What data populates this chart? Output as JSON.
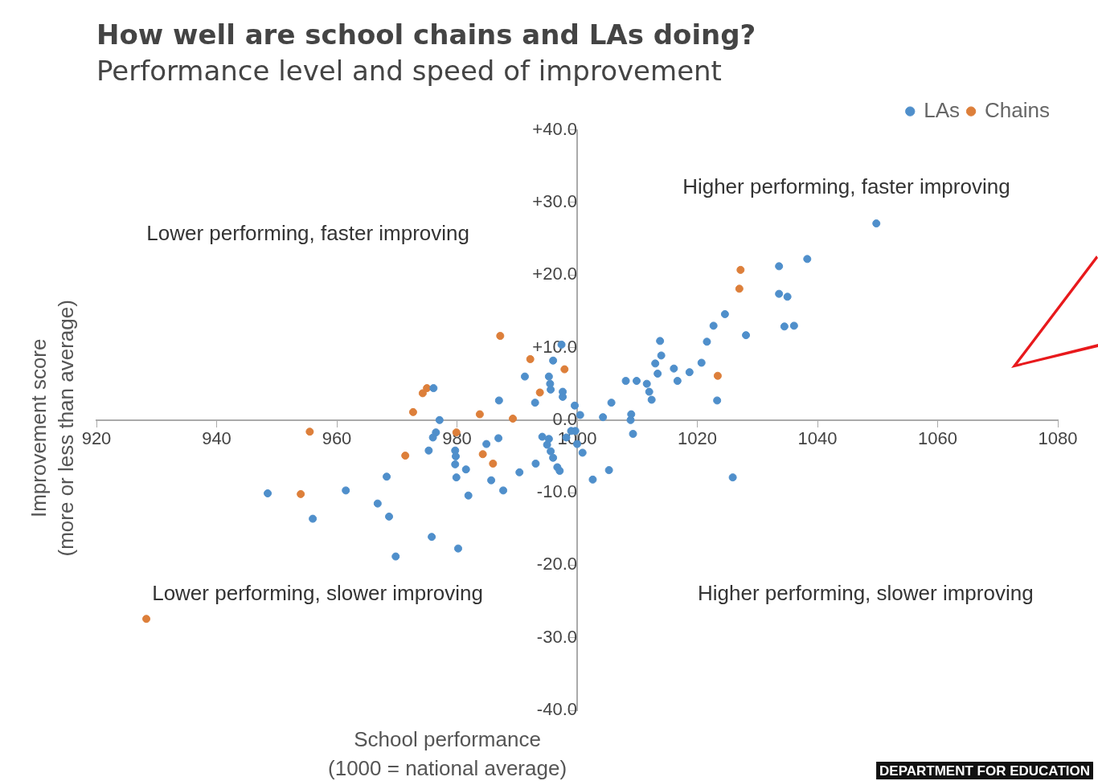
{
  "chart_data": {
    "type": "scatter",
    "title": "How well are school chains and LAs doing?",
    "subtitle": "Performance level and speed of improvement",
    "xlabel": "School performance\n(1000 = national average)",
    "ylabel": "Improvement score\n(more or less than average)",
    "xlim": [
      920,
      1080
    ],
    "xticks": [
      920,
      940,
      960,
      980,
      1000,
      1020,
      1040,
      1060,
      1080
    ],
    "ylim": [
      -40,
      40
    ],
    "yticks": [
      {
        "value": -40,
        "label": "-40.0"
      },
      {
        "value": -30,
        "label": "-30.0"
      },
      {
        "value": -20,
        "label": "-20.0"
      },
      {
        "value": -10,
        "label": "-10.0"
      },
      {
        "value": 0,
        "label": "0.0"
      },
      {
        "value": 10,
        "label": "+10.0"
      },
      {
        "value": 20,
        "label": "+20.0"
      },
      {
        "value": 30,
        "label": "+30.0"
      },
      {
        "value": 40,
        "label": "+40.0"
      }
    ],
    "grid": false,
    "legend": "top right",
    "marker": "circle",
    "series": [
      {
        "name": "LAs",
        "color": "#4f8fcb",
        "x": [
          948.5,
          956,
          961.5,
          966.8,
          968.7,
          968.3,
          969.8,
          975.8,
          980.2,
          976.1,
          977.1,
          976,
          976.5,
          975.3,
          979.7,
          979.8,
          979.7,
          979.9,
          981.5,
          981.9,
          984.9,
          986.9,
          987,
          985.7,
          987.7,
          990.4,
          991.3,
          993,
          993.1,
          994.2,
          995,
          995.3,
          995.6,
          996,
          996.7,
          995.3,
          995.5,
          995.6,
          996,
          997.4,
          997.6,
          997.6,
          998.2,
          999,
          997.1,
          999.6,
          999.7,
          1000,
          1000.5,
          1000.9,
          1002.6,
          1004.3,
          1005.3,
          1005.7,
          1008.1,
          1009,
          1008.9,
          1009.3,
          1009.9,
          1011.6,
          1012,
          1012.4,
          1013,
          1013.4,
          1013.8,
          1014,
          1016.1,
          1016.7,
          1018.7,
          1020.7,
          1021.6,
          1022.7,
          1023.3,
          1024.6,
          1025.9,
          1028.1,
          1033.6,
          1033.6,
          1035,
          1034.5,
          1036.1,
          1038.3,
          1049.8
        ],
        "values": [
          -10.1,
          -13.6,
          -9.7,
          -11.5,
          -13.3,
          -7.8,
          -18.8,
          -16.1,
          -17.7,
          4.4,
          0,
          -2.4,
          -1.7,
          -4.2,
          -4.2,
          -5,
          -6.1,
          -7.9,
          -6.8,
          -10.4,
          -3.3,
          -2.5,
          2.7,
          -8.3,
          -9.7,
          -7.2,
          6,
          2.4,
          -6,
          -2.3,
          -3.4,
          -2.6,
          -4.3,
          -5.2,
          -6.5,
          6,
          5,
          4.2,
          8.2,
          10.4,
          3.9,
          3.2,
          -2.4,
          -1.5,
          -7,
          2,
          -1.5,
          -3.3,
          0.7,
          -4.5,
          -8.2,
          0.4,
          -6.9,
          2.4,
          5.4,
          0.8,
          0,
          -1.9,
          5.4,
          5,
          3.9,
          2.8,
          7.8,
          6.4,
          10.9,
          8.9,
          7.1,
          5.4,
          6.6,
          7.9,
          10.8,
          13,
          2.7,
          14.6,
          -7.9,
          11.7,
          21.2,
          17.4,
          17,
          12.9,
          13,
          22.2,
          27.1
        ]
      },
      {
        "name": "Chains",
        "color": "#dd7f3a",
        "x": [
          928.3,
          954,
          955.5,
          971.4,
          972.7,
          974.3,
          975,
          979.9,
          983.8,
          984.3,
          986,
          987.2,
          989.3,
          992.2,
          993.8,
          997.9,
          1027.2,
          1027,
          1023.4
        ],
        "values": [
          -27.4,
          -10.2,
          -1.6,
          -4.9,
          1.1,
          3.7,
          4.4,
          -1.7,
          0.8,
          -4.7,
          -6,
          11.6,
          0.2,
          8.4,
          3.8,
          7,
          20.7,
          18.1,
          6.1
        ]
      }
    ],
    "annotations": [
      "Lower performing, faster improving",
      "Higher performing, faster improving",
      "Lower performing, slower improving",
      "Higher performing, slower improving",
      "DEPARTMENT FOR EDUCATION"
    ]
  }
}
